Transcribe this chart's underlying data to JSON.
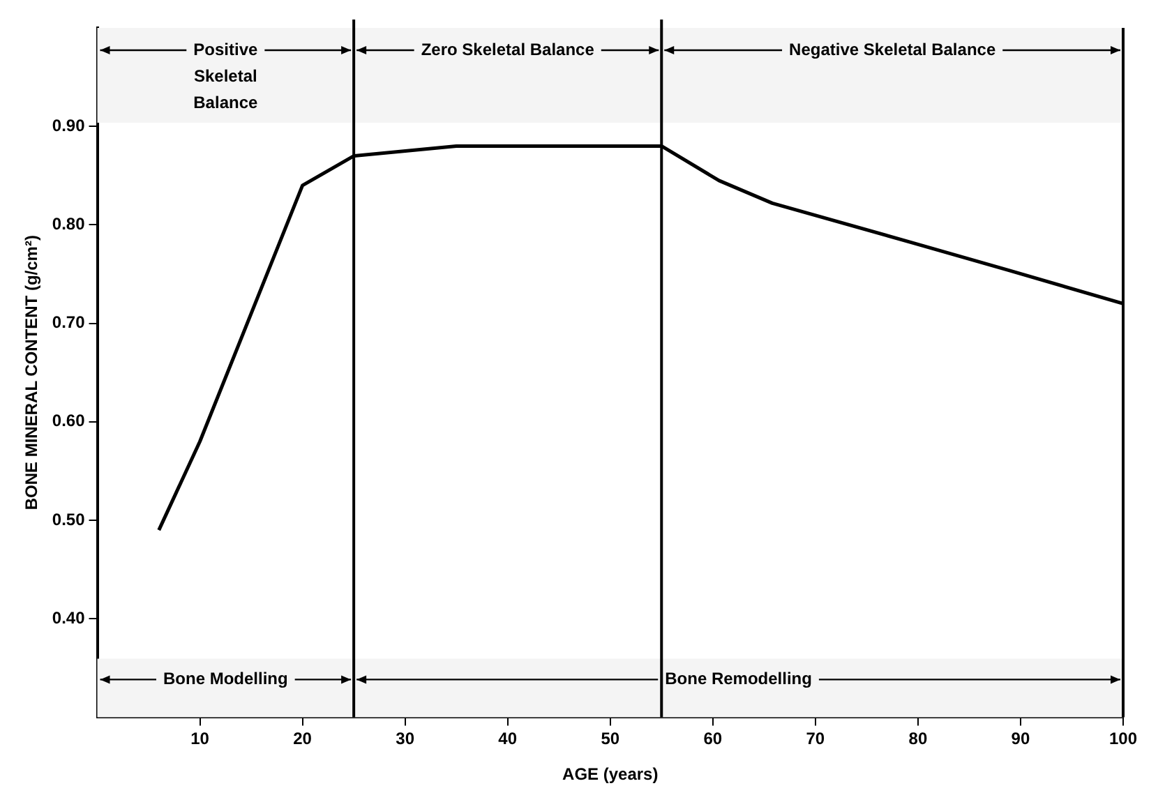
{
  "chart_data": {
    "type": "line",
    "xlabel": "AGE (years)",
    "ylabel": "BONE MINERAL CONTENT (g/cm²)",
    "x": [
      6,
      10,
      20,
      25,
      35,
      55,
      60.6,
      65.8,
      79.4,
      88.8,
      100
    ],
    "series": [
      {
        "color": "#000000",
        "values": [
          0.49,
          0.58,
          0.84,
          0.87,
          0.88,
          0.88,
          0.845,
          0.822,
          0.782,
          0.754,
          0.72
        ]
      }
    ],
    "xlim": [
      0,
      100
    ],
    "xticks": [
      10,
      20,
      30,
      40,
      50,
      60,
      70,
      80,
      90,
      100
    ],
    "ylim": [
      0.3,
      1.0
    ],
    "yticks": [
      {
        "value": 0.4,
        "label": "0.40"
      },
      {
        "value": 0.5,
        "label": "0.50"
      },
      {
        "value": 0.6,
        "label": "0.60"
      },
      {
        "value": 0.7,
        "label": "0.70"
      },
      {
        "value": 0.8,
        "label": "0.80"
      },
      {
        "value": 0.9,
        "label": "0.90"
      }
    ],
    "grid": false,
    "legend": false,
    "marker": "none",
    "line_style": "solid",
    "ref_lines": [
      {
        "axis": "x",
        "value": 25
      },
      {
        "axis": "x",
        "value": 55
      }
    ],
    "bands": [
      {
        "axis": "x",
        "from": 0,
        "to": 25,
        "label": "Positive Skeletal Balance",
        "color": "#f4f4f4"
      },
      {
        "axis": "x",
        "from": 25,
        "to": 55,
        "label": "Zero Skeletal Balance",
        "color": "#f4f4f4"
      },
      {
        "axis": "x",
        "from": 55,
        "to": 100,
        "label": "Negative Skeletal Balance",
        "color": "#f4f4f4"
      },
      {
        "axis": "x",
        "from": 0,
        "to": 25,
        "label": "Bone Modelling",
        "color": "#f4f4f4"
      },
      {
        "axis": "x",
        "from": 25,
        "to": 100,
        "label": "Bone Remodelling",
        "color": "#f4f4f4"
      }
    ]
  }
}
